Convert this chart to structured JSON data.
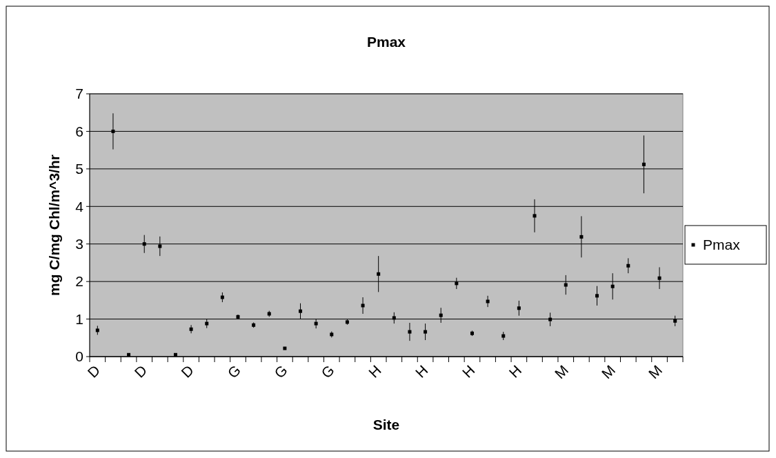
{
  "chart_data": {
    "type": "scatter",
    "title": "Pmax",
    "xlabel": "Site",
    "ylabel": "mg C/mg Chl/m^3/hr",
    "categories": [
      "D",
      null,
      null,
      "D",
      null,
      null,
      "D",
      null,
      null,
      "G",
      null,
      null,
      "G",
      null,
      null,
      "G",
      null,
      null,
      "H",
      null,
      null,
      "H",
      null,
      null,
      "H",
      null,
      null,
      "H",
      null,
      null,
      "M",
      null,
      null,
      "M",
      null,
      null,
      "M",
      null
    ],
    "series": [
      {
        "name": "Pmax",
        "color": "#000000",
        "values": [
          0.7,
          6.0,
          0.05,
          3.0,
          2.94,
          0.05,
          0.73,
          0.88,
          1.58,
          1.06,
          0.84,
          1.14,
          0.22,
          1.21,
          0.88,
          0.59,
          0.92,
          1.36,
          2.2,
          1.03,
          0.66,
          0.66,
          1.1,
          1.95,
          0.62,
          1.47,
          0.55,
          1.29,
          3.75,
          0.99,
          1.91,
          3.19,
          1.62,
          1.87,
          2.42,
          5.12,
          2.09,
          0.95
        ],
        "errors": [
          0.12,
          0.48,
          null,
          0.24,
          0.26,
          null,
          0.11,
          0.12,
          0.13,
          0.06,
          0.07,
          0.08,
          null,
          0.21,
          0.13,
          0.08,
          0.07,
          0.22,
          0.48,
          0.15,
          0.24,
          0.22,
          0.2,
          0.15,
          0.07,
          0.15,
          0.11,
          0.2,
          0.44,
          0.18,
          0.26,
          0.55,
          0.26,
          0.35,
          0.2,
          0.77,
          0.29,
          0.14
        ]
      }
    ],
    "ylim": [
      0,
      7
    ],
    "yticks": [
      0,
      1,
      2,
      3,
      4,
      5,
      6,
      7
    ],
    "grid": "y",
    "legend": "right",
    "marker": "square"
  }
}
